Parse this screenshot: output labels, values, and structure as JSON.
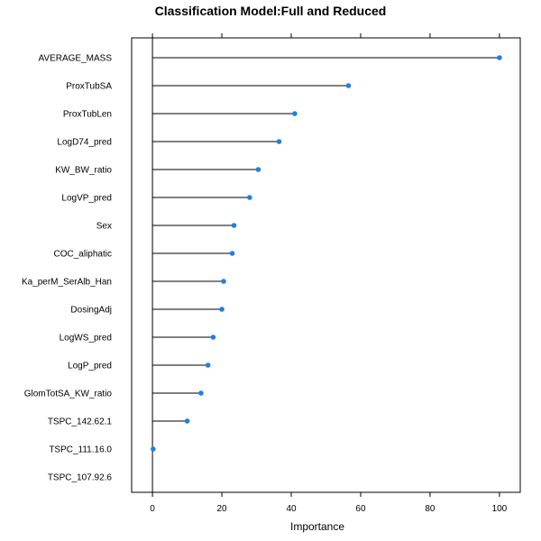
{
  "chart_data": {
    "type": "dot",
    "title": "Classification Model:Full and Reduced",
    "xlabel": "Importance",
    "ylabel": "",
    "xlim": [
      -6,
      106
    ],
    "x_ticks": [
      0,
      20,
      40,
      60,
      80,
      100
    ],
    "grid": false,
    "legend": "none",
    "colors": {
      "point": "#1f7fe5",
      "segment": "#000000",
      "frame": "#000000"
    },
    "categories": [
      "AVERAGE_MASS",
      "ProxTubSA",
      "ProxTubLen",
      "LogD74_pred",
      "KW_BW_ratio",
      "LogVP_pred",
      "Sex",
      "COC_aliphatic",
      "Ka_perM_SerAlb_Han",
      "DosingAdj",
      "LogWS_pred",
      "LogP_pred",
      "GlomTotSA_KW_ratio",
      "TSPC_142.62.1",
      "TSPC_111.16.0",
      "TSPC_107.92.6"
    ],
    "values": [
      100,
      56.5,
      41,
      36.5,
      30.5,
      28,
      23.5,
      23,
      20.5,
      20,
      17.5,
      16,
      14,
      10,
      0.2,
      null
    ]
  }
}
